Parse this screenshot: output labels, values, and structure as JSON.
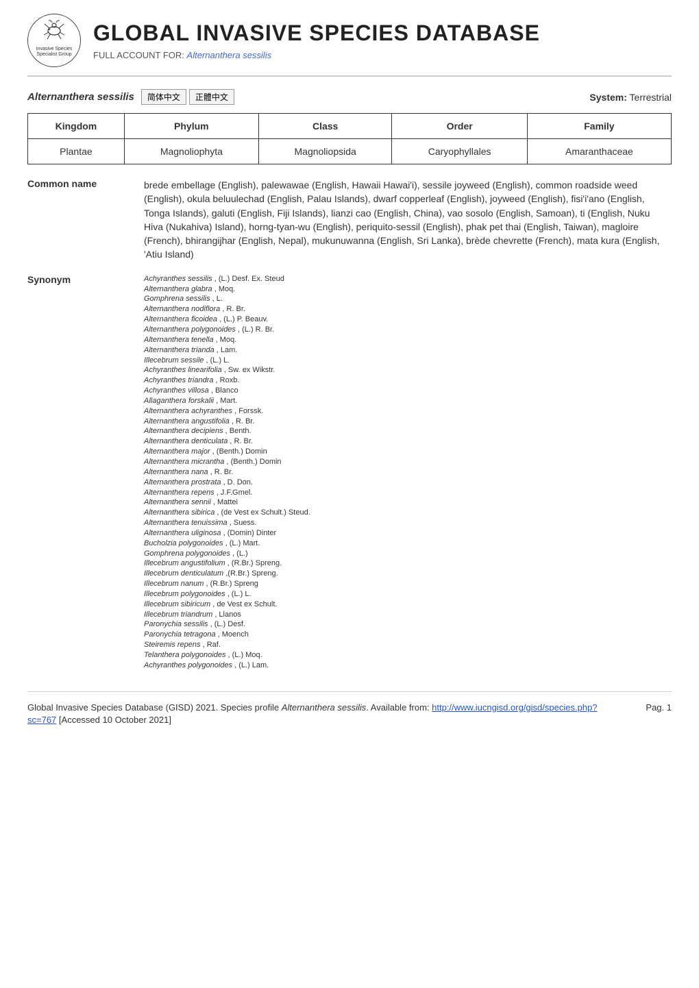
{
  "header": {
    "logo_text_top": "Invasive Species",
    "logo_text_bottom": "Specialist Group",
    "db_title": "GLOBAL INVASIVE SPECIES DATABASE",
    "subtitle_prefix": "FULL ACCOUNT FOR: ",
    "subtitle_species": "Alternanthera sessilis"
  },
  "species_row": {
    "species": "Alternanthera sessilis",
    "lang_buttons": [
      "简体中文",
      "正體中文"
    ],
    "system_label": "System:",
    "system_value": "Terrestrial"
  },
  "taxonomy": {
    "headers": [
      "Kingdom",
      "Phylum",
      "Class",
      "Order",
      "Family"
    ],
    "values": [
      "Plantae",
      "Magnoliophyta",
      "Magnoliopsida",
      "Caryophyllales",
      "Amaranthaceae"
    ]
  },
  "common_name": {
    "label": "Common name",
    "text": "brede embellage (English), palewawae (English, Hawaii Hawai'i), sessile joyweed (English), common roadside weed (English), okula beluulechad (English, Palau Islands), dwarf copperleaf (English), joyweed (English), fisi'i'ano (English, Tonga Islands), galuti (English, Fiji Islands), lianzi cao (English, China), vao sosolo (English, Samoan), ti (English, Nuku Hiva (Nukahiva) Island), horng-tyan-wu (English), periquito-sessil (English), phak pet thai (English, Taiwan), magloire (French), bhirangijhar (English, Nepal), mukunuwanna (English, Sri Lanka), brède chevrette (French), mata kura (English, 'Atiu Island)"
  },
  "synonym": {
    "label": "Synonym",
    "items": [
      {
        "name": "Achyranthes sessilis",
        "auth": ", (L.) Desf. Ex. Steud"
      },
      {
        "name": "Alternanthera glabra",
        "auth": ", Moq."
      },
      {
        "name": "Gomphrena sessilis",
        "auth": ", L."
      },
      {
        "name": "Alternanthera nodiflora",
        "auth": ", R. Br."
      },
      {
        "name": "Alternanthera ficoidea",
        "auth": ", (L.) P. Beauv."
      },
      {
        "name": "Alternanthera polygonoides",
        "auth": ", (L.) R. Br."
      },
      {
        "name": "Alternanthera tenella",
        "auth": ", Moq."
      },
      {
        "name": "Alternanthera trianda",
        "auth": ", Lam."
      },
      {
        "name": "Illecebrum sessile",
        "auth": ", (L.) L."
      },
      {
        "name": "Achyranthes linearifolia",
        "auth": ", Sw. ex Wikstr."
      },
      {
        "name": "Achyranthes triandra",
        "auth": ", Roxb."
      },
      {
        "name": "Achyranthes villosa",
        "auth": ", Blanco"
      },
      {
        "name": "Allaganthera forskalii",
        "auth": ", Mart."
      },
      {
        "name": "Alternanthera achyranthes",
        "auth": ", Forssk."
      },
      {
        "name": "Alternanthera angustifolia",
        "auth": ", R. Br."
      },
      {
        "name": "Alternanthera decipiens",
        "auth": ", Benth."
      },
      {
        "name": "Alternanthera denticulata",
        "auth": ", R. Br."
      },
      {
        "name": "Alternanthera major",
        "auth": ", (Benth.) Domin"
      },
      {
        "name": "Alternanthera micrantha",
        "auth": ", (Benth.) Domin"
      },
      {
        "name": "Alternanthera nana",
        "auth": ", R. Br."
      },
      {
        "name": "Alternanthera prostrata",
        "auth": ", D. Don."
      },
      {
        "name": "Alternanthera repens",
        "auth": ", J.F.Gmel."
      },
      {
        "name": "Alternanthera sennii",
        "auth": ", Mattei"
      },
      {
        "name": "Alternanthera sibirica",
        "auth": ", (de Vest ex Schult.) Steud."
      },
      {
        "name": "Alternanthera tenuissima",
        "auth": ", Suess."
      },
      {
        "name": "Alternanthera uliginosa",
        "auth": ", (Domin) Dinter"
      },
      {
        "name": "Bucholzia polygonoides",
        "auth": ", (L.) Mart."
      },
      {
        "name": "Gomphrena polygonoides",
        "auth": ", (L.)"
      },
      {
        "name": "Illecebrum angustifolium",
        "auth": ", (R.Br.) Spreng."
      },
      {
        "name": "Illecebrum denticulatum",
        "auth": " ,(R.Br.) Spreng."
      },
      {
        "name": "Illecebrum nanum",
        "auth": ", (R.Br.) Spreng"
      },
      {
        "name": "Illecebrum polygonoides",
        "auth": ", (L.) L."
      },
      {
        "name": "Illecebrum sibiricum",
        "auth": ", de Vest ex Schult."
      },
      {
        "name": "Illecebrum triandrum",
        "auth": ", Llanos"
      },
      {
        "name": "Paronychia sessilis",
        "auth": ", (L.) Desf."
      },
      {
        "name": "Paronychia tetragona",
        "auth": ", Moench"
      },
      {
        "name": "Steiremis repens",
        "auth": ", Raf."
      },
      {
        "name": "Telanthera polygonoides",
        "auth": ", (L.) Moq."
      },
      {
        "name": "Achyranthes polygonoides",
        "auth": ", (L.) Lam."
      }
    ]
  },
  "footer": {
    "citation_prefix": "Global Invasive Species Database (GISD) 2021. Species profile ",
    "citation_species": "Alternanthera sessilis",
    "citation_suffix": ". Available from: ",
    "url": "http://www.iucngisd.org/gisd/species.php?sc=767",
    "accessed": " [Accessed 10 October 2021]",
    "page": "Pag. 1"
  }
}
